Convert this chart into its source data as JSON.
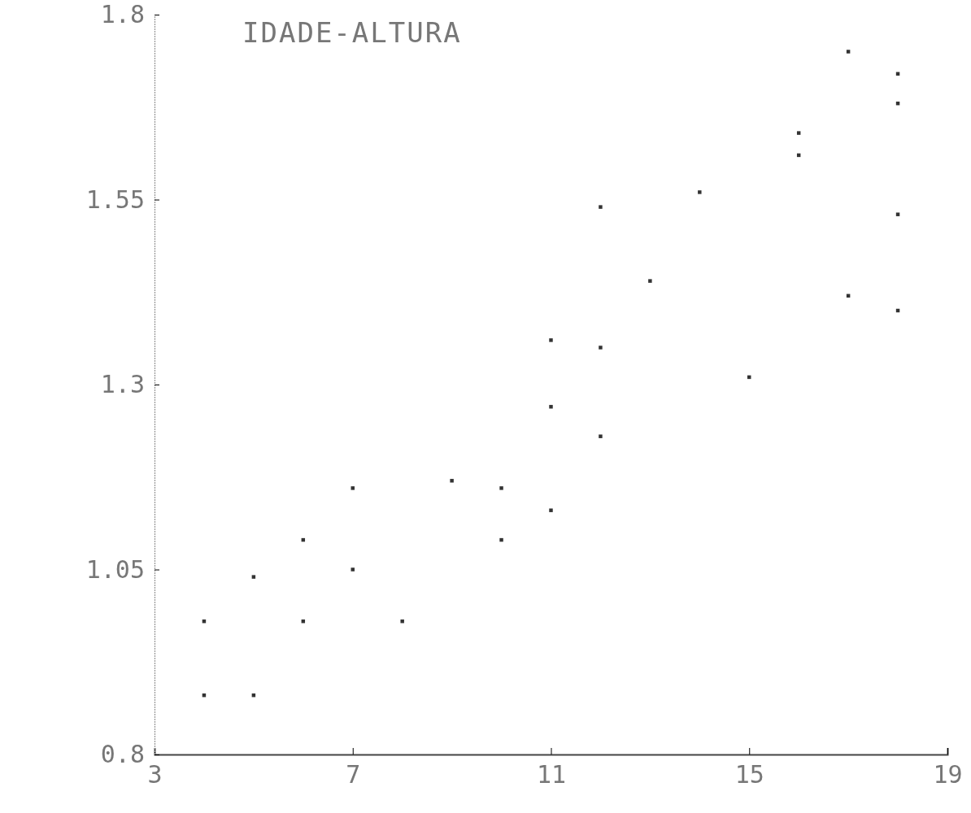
{
  "chart_data": {
    "type": "scatter",
    "title": "IDADE-ALTURA",
    "xlim": [
      3,
      19
    ],
    "xticks": [
      3,
      7,
      11,
      15,
      19
    ],
    "ylim": [
      0.8,
      1.8
    ],
    "yticks": [
      0.8,
      1.05,
      1.3,
      1.55,
      1.8
    ],
    "grid": false,
    "marker": "square",
    "series": [
      {
        "color": "#333333",
        "x": [
          4,
          4,
          5,
          5,
          6,
          6,
          7,
          7,
          8,
          9,
          10,
          10,
          11,
          11,
          11,
          12,
          12,
          12,
          13,
          14,
          15,
          16,
          16,
          17,
          17,
          18,
          18,
          18,
          18
        ],
        "values": [
          0.98,
          0.88,
          1.04,
          0.88,
          1.09,
          0.98,
          1.16,
          1.05,
          0.98,
          1.17,
          1.16,
          1.09,
          1.36,
          1.27,
          1.13,
          1.54,
          1.35,
          1.23,
          1.44,
          1.56,
          1.31,
          1.64,
          1.61,
          1.75,
          1.42,
          1.72,
          1.68,
          1.53,
          1.4
        ]
      }
    ]
  }
}
